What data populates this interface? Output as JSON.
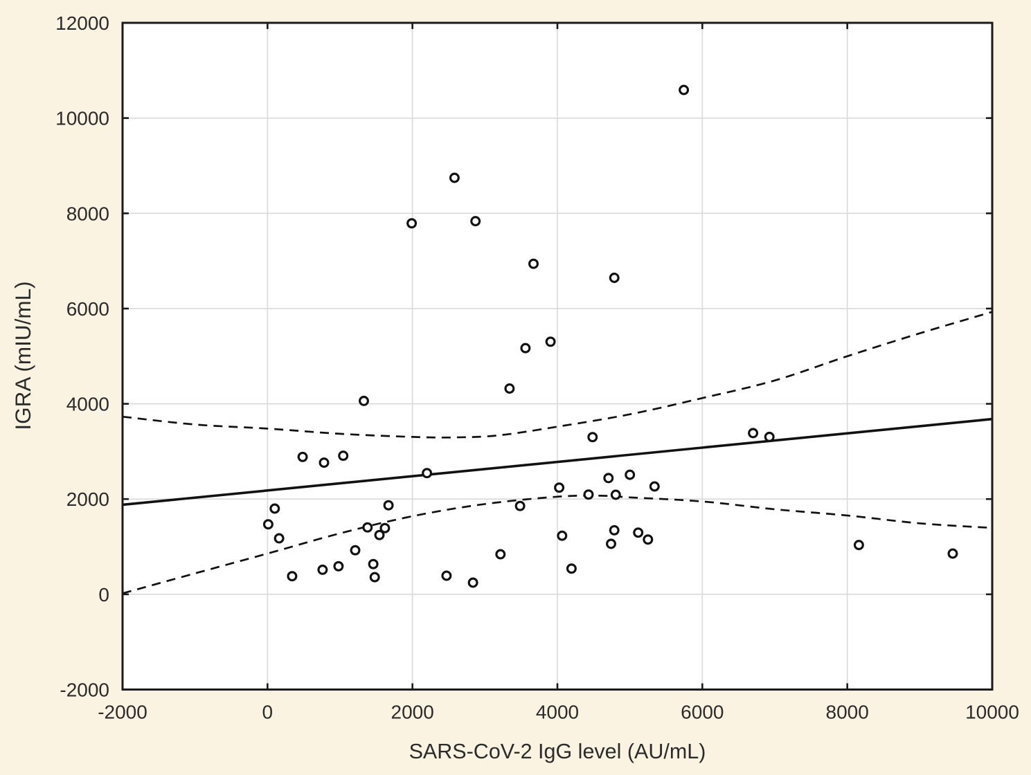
{
  "figure": {
    "background_color": "#FAF3E2",
    "plot_background_color": "#FFFFFF",
    "frame_color": "#1A1A1A",
    "grid_color": "#D9D9D9",
    "text_color": "#2B2B2B",
    "marker_color": "#111111"
  },
  "chart_data": {
    "type": "scatter",
    "title": "",
    "xlabel": "SARS-CoV-2 IgG level (AU/mL)",
    "ylabel": "IGRA (mIU/mL)",
    "xlim": [
      -2000,
      10000
    ],
    "ylim": [
      -2000,
      12000
    ],
    "x_ticks": [
      -2000,
      0,
      2000,
      4000,
      6000,
      8000,
      10000
    ],
    "y_ticks": [
      -2000,
      0,
      2000,
      4000,
      6000,
      8000,
      10000,
      12000
    ],
    "x_tick_labels": [
      "-2000",
      "0",
      "2000",
      "4000",
      "6000",
      "8000",
      "10000"
    ],
    "y_tick_labels": [
      "-2000",
      "0",
      "2000",
      "4000",
      "6000",
      "8000",
      "10000",
      "12000"
    ],
    "grid": true,
    "legend_position": "none",
    "marker_style": "open-circle",
    "points": [
      [
        5745,
        10590
      ],
      [
        2580,
        8745
      ],
      [
        1990,
        7790
      ],
      [
        2870,
        7835
      ],
      [
        3670,
        6940
      ],
      [
        4785,
        6645
      ],
      [
        3905,
        5305
      ],
      [
        3560,
        5170
      ],
      [
        3340,
        4320
      ],
      [
        1330,
        4060
      ],
      [
        6700,
        3385
      ],
      [
        6925,
        3305
      ],
      [
        4485,
        3300
      ],
      [
        485,
        2885
      ],
      [
        780,
        2765
      ],
      [
        1045,
        2910
      ],
      [
        2200,
        2545
      ],
      [
        5000,
        2510
      ],
      [
        4705,
        2440
      ],
      [
        5340,
        2265
      ],
      [
        4025,
        2240
      ],
      [
        4430,
        2095
      ],
      [
        4805,
        2090
      ],
      [
        3485,
        1855
      ],
      [
        1670,
        1870
      ],
      [
        100,
        1800
      ],
      [
        10,
        1470
      ],
      [
        160,
        1175
      ],
      [
        1380,
        1405
      ],
      [
        1620,
        1390
      ],
      [
        1545,
        1245
      ],
      [
        1210,
        925
      ],
      [
        1460,
        635
      ],
      [
        1480,
        360
      ],
      [
        980,
        590
      ],
      [
        760,
        515
      ],
      [
        340,
        380
      ],
      [
        2470,
        390
      ],
      [
        2835,
        245
      ],
      [
        3215,
        840
      ],
      [
        4065,
        1230
      ],
      [
        4785,
        1345
      ],
      [
        5115,
        1295
      ],
      [
        5250,
        1150
      ],
      [
        4740,
        1060
      ],
      [
        4195,
        540
      ],
      [
        8160,
        1035
      ],
      [
        9455,
        855
      ]
    ],
    "regression_line": {
      "x": [
        -2000,
        10000
      ],
      "y": [
        1880,
        3680
      ],
      "style": "solid"
    },
    "confidence_band_upper": {
      "style": "dashed",
      "points": [
        [
          -2000,
          3730
        ],
        [
          -1000,
          3565
        ],
        [
          0,
          3480
        ],
        [
          1000,
          3370
        ],
        [
          2000,
          3305
        ],
        [
          2600,
          3295
        ],
        [
          3200,
          3340
        ],
        [
          4000,
          3520
        ],
        [
          5000,
          3780
        ],
        [
          6000,
          4120
        ],
        [
          7000,
          4490
        ],
        [
          8000,
          5000
        ],
        [
          9000,
          5480
        ],
        [
          10000,
          5930
        ]
      ]
    },
    "confidence_band_lower": {
      "style": "dashed",
      "points": [
        [
          -2000,
          20
        ],
        [
          -1000,
          440
        ],
        [
          0,
          855
        ],
        [
          1000,
          1280
        ],
        [
          2000,
          1640
        ],
        [
          3000,
          1895
        ],
        [
          4000,
          2050
        ],
        [
          4600,
          2070
        ],
        [
          5000,
          2035
        ],
        [
          6000,
          1950
        ],
        [
          7000,
          1785
        ],
        [
          8000,
          1655
        ],
        [
          9000,
          1490
        ],
        [
          10000,
          1395
        ]
      ]
    }
  }
}
